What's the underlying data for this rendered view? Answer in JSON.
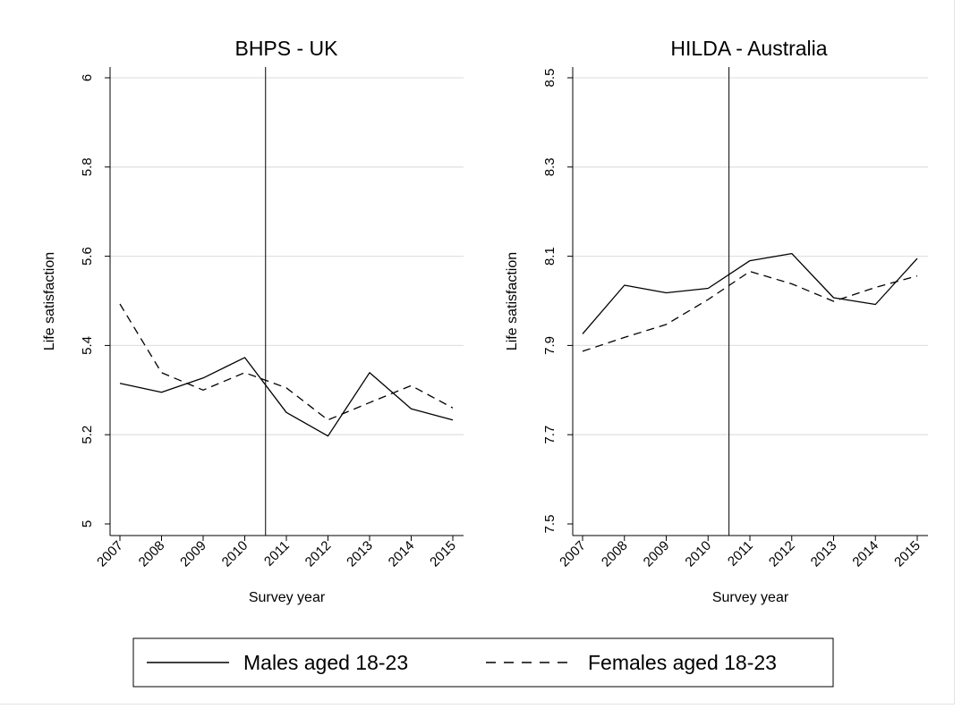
{
  "chart_data": [
    {
      "type": "line",
      "title": "BHPS - UK",
      "xlabel": "Survey year",
      "ylabel": "Life satisfaction",
      "x": [
        "2007",
        "2008",
        "2009",
        "2010",
        "2011",
        "2012",
        "2013",
        "2014",
        "2015"
      ],
      "ylim": [
        5,
        6
      ],
      "yticks": [
        "5",
        "5.2",
        "5.4",
        "5.6",
        "5.8",
        "6"
      ],
      "grid": true,
      "reference_line_between": [
        "2010",
        "2011"
      ],
      "series": [
        {
          "name": "Males aged 18-23",
          "style": "solid",
          "values": [
            5.315,
            5.295,
            5.327,
            5.373,
            5.25,
            5.197,
            5.339,
            5.258,
            5.233
          ]
        },
        {
          "name": "Females aged 18-23",
          "style": "dashed",
          "values": [
            5.493,
            5.339,
            5.3,
            5.339,
            5.305,
            5.233,
            5.272,
            5.31,
            5.26
          ]
        }
      ]
    },
    {
      "type": "line",
      "title": "HILDA - Australia",
      "xlabel": "Survey year",
      "ylabel": "Life satisfaction",
      "x": [
        "2007",
        "2008",
        "2009",
        "2010",
        "2011",
        "2012",
        "2013",
        "2014",
        "2015"
      ],
      "ylim": [
        7.5,
        8.5
      ],
      "yticks": [
        "7.5",
        "7.7",
        "7.9",
        "8.1",
        "8.3",
        "8.5"
      ],
      "grid": true,
      "reference_line_between": [
        "2010",
        "2011"
      ],
      "series": [
        {
          "name": "Males aged 18-23",
          "style": "solid",
          "values": [
            7.926,
            8.035,
            8.018,
            8.028,
            8.09,
            8.106,
            8.007,
            7.992,
            8.095
          ]
        },
        {
          "name": "Females aged 18-23",
          "style": "dashed",
          "values": [
            7.887,
            7.918,
            7.947,
            8.003,
            8.066,
            8.038,
            7.999,
            8.03,
            8.056
          ]
        }
      ]
    }
  ],
  "legend": {
    "position": "bottom-center",
    "entries": [
      {
        "label": "Males aged 18-23",
        "style": "solid"
      },
      {
        "label": "Females aged 18-23",
        "style": "dashed"
      }
    ]
  }
}
